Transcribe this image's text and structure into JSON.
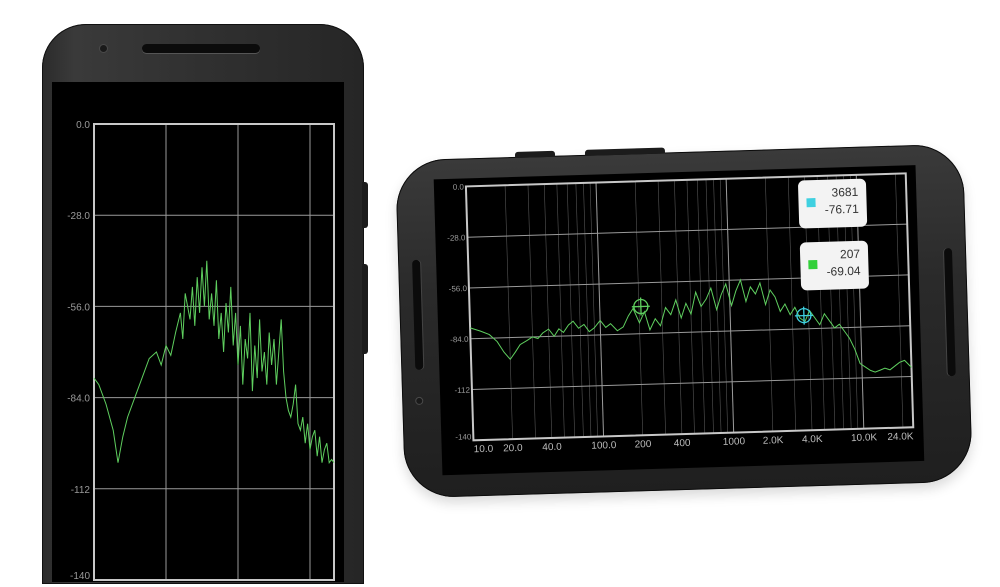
{
  "chart_data": [
    {
      "type": "line",
      "yticks": [
        "0.0",
        "-28.0",
        "-56.0",
        "-84.0",
        "-112",
        "-140"
      ],
      "ylim": [
        -140,
        0
      ],
      "colors": {
        "line": "#5fcf5f",
        "grid": "#9a9a9a",
        "frame": "#c8c8c8",
        "tick_label": "#9a9a9a"
      },
      "series": [
        {
          "x": [
            0,
            0.02,
            0.05,
            0.08,
            0.1,
            0.12,
            0.14,
            0.17,
            0.2,
            0.23,
            0.26,
            0.28,
            0.3,
            0.32,
            0.34,
            0.36,
            0.37,
            0.38,
            0.4,
            0.41,
            0.42,
            0.43,
            0.44,
            0.45,
            0.46,
            0.47,
            0.48,
            0.49,
            0.5,
            0.51,
            0.52,
            0.53,
            0.54,
            0.55,
            0.56,
            0.57,
            0.58,
            0.59,
            0.6,
            0.61,
            0.62,
            0.63,
            0.64,
            0.65,
            0.66,
            0.67,
            0.68,
            0.69,
            0.7,
            0.71,
            0.72,
            0.73,
            0.74,
            0.75,
            0.76,
            0.77,
            0.78,
            0.79,
            0.8,
            0.81,
            0.82,
            0.83,
            0.84,
            0.85,
            0.86,
            0.87,
            0.88,
            0.89,
            0.9,
            0.91,
            0.92,
            0.93,
            0.94,
            0.95,
            0.96,
            0.97,
            0.98,
            0.99,
            1.0
          ],
          "y": [
            -78,
            -80,
            -86,
            -94,
            -104,
            -96,
            -90,
            -84,
            -78,
            -72,
            -70,
            -74,
            -68,
            -71,
            -64,
            -58,
            -66,
            -52,
            -60,
            -50,
            -62,
            -47,
            -58,
            -44,
            -56,
            -42,
            -60,
            -52,
            -62,
            -48,
            -66,
            -58,
            -70,
            -55,
            -64,
            -50,
            -68,
            -58,
            -74,
            -62,
            -80,
            -66,
            -72,
            -58,
            -82,
            -68,
            -78,
            -60,
            -76,
            -70,
            -80,
            -64,
            -74,
            -66,
            -80,
            -70,
            -60,
            -76,
            -84,
            -88,
            -90,
            -86,
            -80,
            -92,
            -94,
            -90,
            -98,
            -92,
            -100,
            -96,
            -94,
            -102,
            -96,
            -104,
            -100,
            -98,
            -104,
            -103,
            -104
          ]
        }
      ]
    },
    {
      "type": "line",
      "x_scale": "log",
      "xlim": [
        10,
        24000
      ],
      "ylim": [
        -140,
        0
      ],
      "xticks": [
        10,
        20,
        40,
        100,
        200,
        400,
        1000,
        2000,
        4000,
        10000,
        24000
      ],
      "xtick_labels": [
        "10.0",
        "20.0",
        "40.0",
        "100.0",
        "200",
        "400",
        "1000",
        "2.0K",
        "4.0K",
        "10.0K",
        "24.0K"
      ],
      "yticks": [
        "0.0",
        "-28.0",
        "-56.0",
        "-84.0",
        "-112",
        "-140"
      ],
      "colors": {
        "line": "#5fcf5f",
        "grid": "#9a9a9a",
        "frame": "#c8c8c8",
        "tick_label": "#9a9a9a"
      },
      "series": [
        {
          "x": [
            10,
            12,
            14,
            16,
            18,
            20,
            22,
            24,
            27,
            30,
            33,
            36,
            40,
            44,
            48,
            52,
            57,
            62,
            68,
            75,
            82,
            90,
            100,
            110,
            120,
            135,
            150,
            165,
            180,
            200,
            220,
            240,
            265,
            290,
            320,
            350,
            385,
            420,
            460,
            500,
            550,
            600,
            660,
            720,
            790,
            860,
            940,
            1030,
            1120,
            1220,
            1330,
            1450,
            1580,
            1720,
            1880,
            2050,
            2230,
            2430,
            2650,
            2890,
            3150,
            3430,
            3740,
            4080,
            4450,
            4850,
            5290,
            5770,
            6290,
            6860,
            7480,
            8160,
            8900,
            9700,
            10600,
            11600,
            12600,
            13800,
            15000,
            16400,
            17900,
            19500,
            21300,
            24000
          ],
          "y": [
            -78,
            -80,
            -82,
            -86,
            -92,
            -96,
            -92,
            -88,
            -86,
            -84,
            -85,
            -82,
            -80,
            -84,
            -80,
            -82,
            -78,
            -76,
            -80,
            -78,
            -82,
            -80,
            -76,
            -80,
            -78,
            -82,
            -80,
            -74,
            -70,
            -78,
            -72,
            -82,
            -76,
            -80,
            -70,
            -74,
            -66,
            -76,
            -68,
            -74,
            -62,
            -70,
            -66,
            -60,
            -72,
            -64,
            -58,
            -70,
            -62,
            -56,
            -68,
            -60,
            -64,
            -58,
            -70,
            -62,
            -66,
            -74,
            -70,
            -76,
            -72,
            -78,
            -80,
            -74,
            -78,
            -82,
            -76,
            -80,
            -84,
            -82,
            -86,
            -90,
            -96,
            -104,
            -106,
            -108,
            -109,
            -108,
            -107,
            -108,
            -106,
            -104,
            -103,
            -107
          ]
        }
      ],
      "markers": [
        {
          "frequency": 207,
          "db": -69.04,
          "color": "#5fcf5f",
          "label_freq": "207",
          "label_db": "-69.04"
        },
        {
          "frequency": 3681,
          "db": -76.71,
          "color": "#3fd0e0",
          "label_freq": "3681",
          "label_db": "-76.71"
        }
      ]
    }
  ]
}
